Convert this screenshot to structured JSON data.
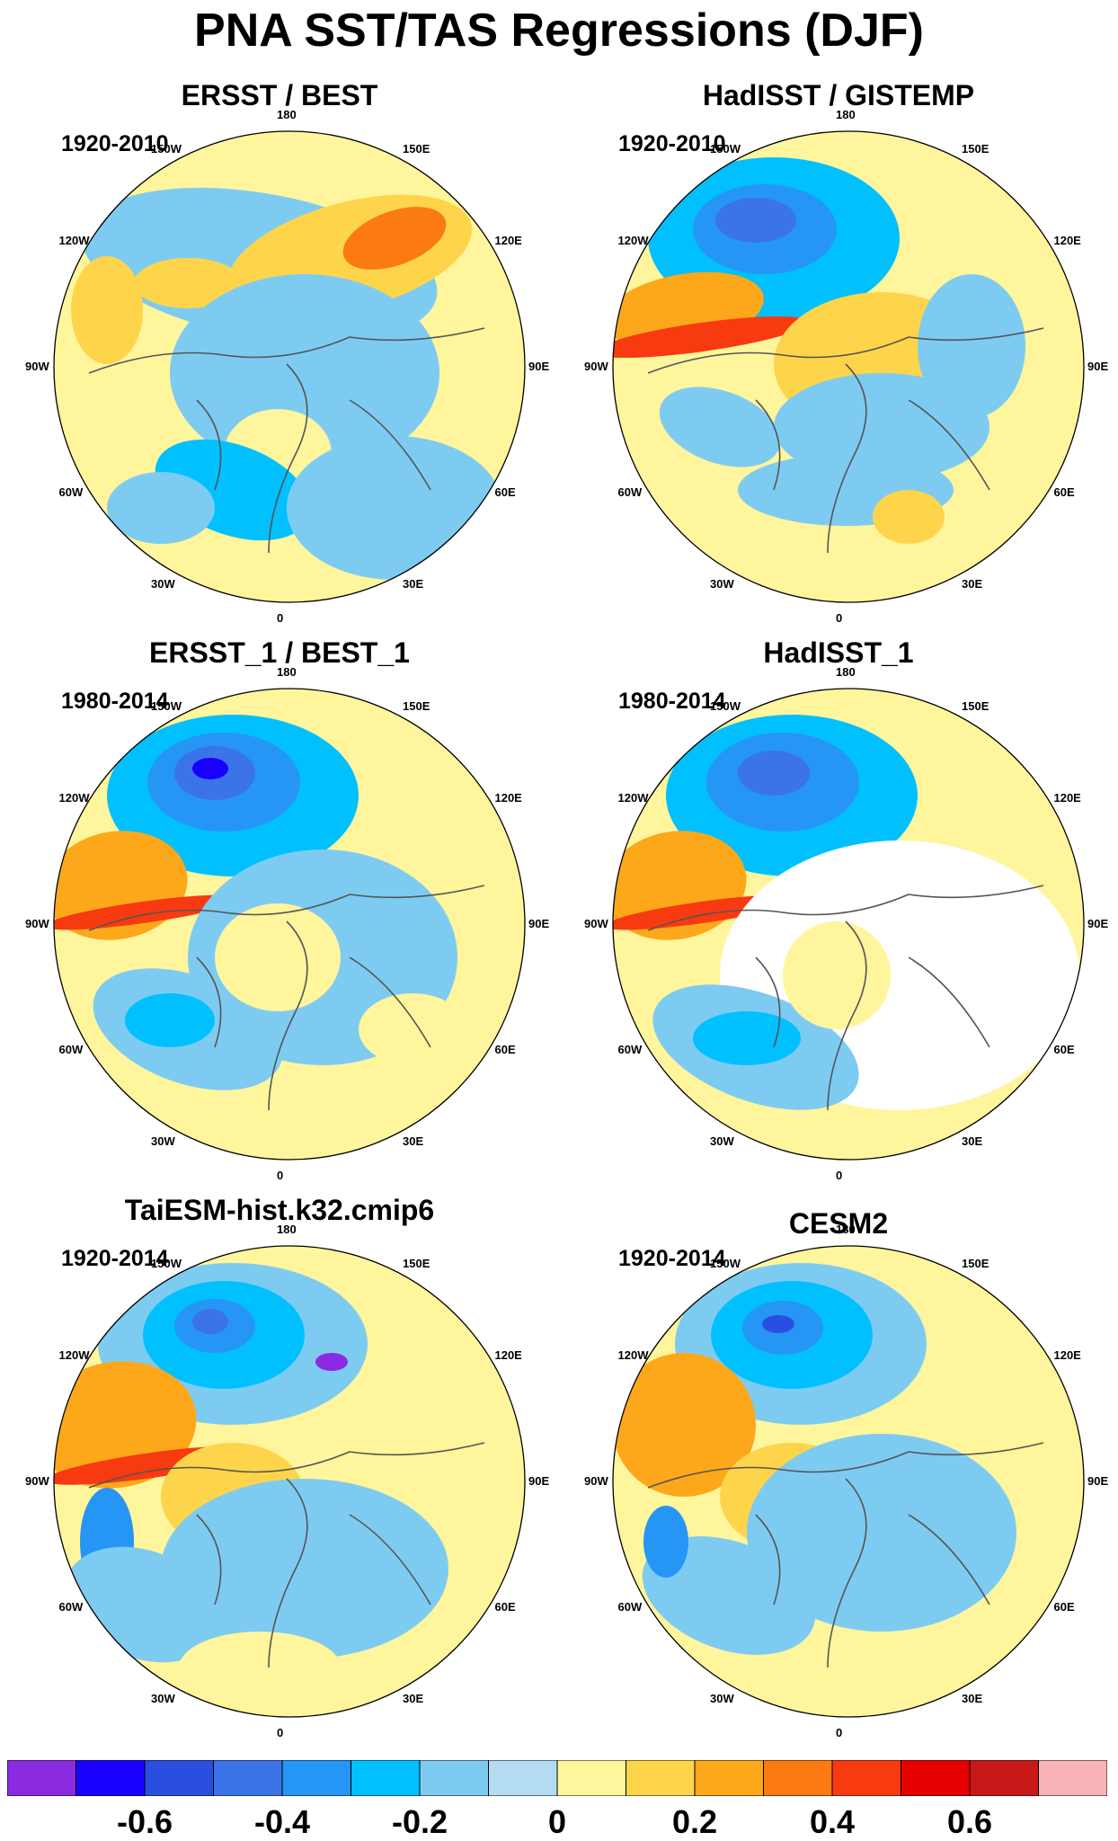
{
  "title": "PNA SST/TAS Regressions (DJF)",
  "panels": [
    {
      "title": "ERSST / BEST",
      "period": "1920-2010"
    },
    {
      "title": "HadISST / GISTEMP",
      "period": "1920-2010"
    },
    {
      "title": "ERSST_1 / BEST_1",
      "period": "1980-2014"
    },
    {
      "title": "HadISST_1",
      "period": "1980-2014"
    },
    {
      "title": "TaiESM-hist.k32.cmip6",
      "period": "1920-2014"
    },
    {
      "title": "CESM2",
      "period": "1920-2014"
    }
  ],
  "longitude_labels": [
    "180",
    "150E",
    "120E",
    "90E",
    "60E",
    "30E",
    "0",
    "30W",
    "60W",
    "90W",
    "120W",
    "150W"
  ],
  "colorbar": {
    "colors": [
      "#8a2be2",
      "#1a00ff",
      "#2a4fe0",
      "#3a74e8",
      "#2596f5",
      "#00c0ff",
      "#7ecbf2",
      "#b3dcf2",
      "#fff59d",
      "#fed54a",
      "#fca81a",
      "#fb7a12",
      "#f83a10",
      "#e60000",
      "#c81818",
      "#f7b3b5"
    ],
    "tick_labels": [
      "-0.6",
      "-0.4",
      "-0.2",
      "0",
      "0.2",
      "0.4",
      "0.6"
    ]
  }
}
